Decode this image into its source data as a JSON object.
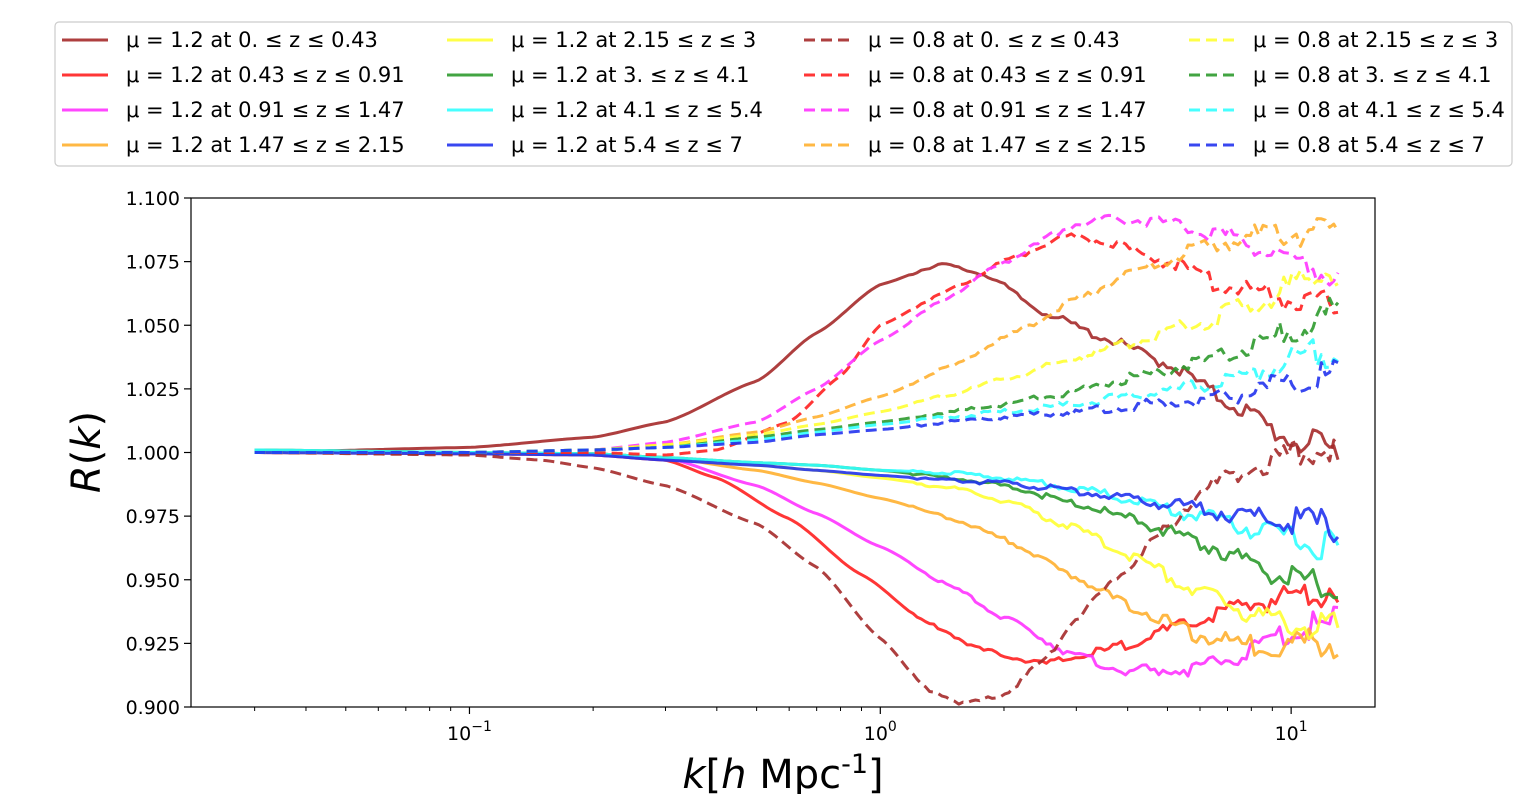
{
  "chart_data": {
    "type": "line",
    "title": "",
    "xlabel": "k[h Mpc^-1]",
    "ylabel": "R(k)",
    "xscale": "log",
    "xlim": [
      0.021,
      16
    ],
    "ylim": [
      0.9,
      1.1
    ],
    "x_ticks": [
      {
        "value": 0.1,
        "label": "10",
        "exp": "−1"
      },
      {
        "value": 1,
        "label": "10",
        "exp": "0"
      },
      {
        "value": 10,
        "label": "10",
        "exp": "1"
      }
    ],
    "y_ticks": [
      {
        "value": 0.9,
        "label": "0.900"
      },
      {
        "value": 0.925,
        "label": "0.925"
      },
      {
        "value": 0.95,
        "label": "0.950"
      },
      {
        "value": 0.975,
        "label": "0.975"
      },
      {
        "value": 1.0,
        "label": "1.000"
      },
      {
        "value": 1.025,
        "label": "1.025"
      },
      {
        "value": 1.05,
        "label": "1.050"
      },
      {
        "value": 1.075,
        "label": "1.075"
      },
      {
        "value": 1.1,
        "label": "1.100"
      }
    ],
    "grid": false,
    "legend_position": "top",
    "series": [
      {
        "name": "μ = 1.2 at 0. ≤ z ≤ 0.43",
        "color": "#a52a2a",
        "dash": "solid",
        "x": [
          0.03,
          0.1,
          0.2,
          0.3,
          0.5,
          0.7,
          1.0,
          1.4,
          1.8,
          2.5,
          3.5,
          5.0,
          7.0,
          10.0,
          13.0
        ],
        "y": [
          1.0,
          1.002,
          1.006,
          1.012,
          1.028,
          1.047,
          1.066,
          1.074,
          1.07,
          1.055,
          1.045,
          1.035,
          1.02,
          1.005,
          1.0
        ]
      },
      {
        "name": "μ = 1.2 at 0.43 ≤ z ≤ 0.91",
        "color": "#ff2020",
        "dash": "solid",
        "x": [
          0.03,
          0.1,
          0.2,
          0.3,
          0.4,
          0.6,
          0.9,
          1.3,
          1.8,
          2.5,
          3.5,
          5.0,
          7.0,
          10.0,
          13.0
        ],
        "y": [
          1.0,
          0.9995,
          0.999,
          0.997,
          0.99,
          0.974,
          0.952,
          0.933,
          0.922,
          0.917,
          0.922,
          0.93,
          0.938,
          0.944,
          0.947
        ]
      },
      {
        "name": "μ = 1.2 at 0.91 ≤ z ≤ 1.47",
        "color": "#ff33ff",
        "dash": "solid",
        "x": [
          0.03,
          0.1,
          0.2,
          0.3,
          0.5,
          0.7,
          1.0,
          1.5,
          2.0,
          3.0,
          4.0,
          6.0,
          8.0,
          10.0,
          13.0
        ],
        "y": [
          1.0,
          0.9998,
          0.9995,
          0.998,
          0.987,
          0.976,
          0.963,
          0.947,
          0.935,
          0.92,
          0.914,
          0.915,
          0.922,
          0.93,
          0.933
        ]
      },
      {
        "name": "μ = 1.2 at 1.47 ≤ z ≤ 2.15",
        "color": "#ffb030",
        "dash": "solid",
        "x": [
          0.03,
          0.1,
          0.2,
          0.3,
          0.5,
          0.7,
          1.0,
          1.5,
          2.0,
          3.0,
          4.0,
          6.0,
          8.0,
          10.0,
          13.0
        ],
        "y": [
          1.0,
          0.9998,
          0.9995,
          0.998,
          0.993,
          0.988,
          0.982,
          0.974,
          0.966,
          0.951,
          0.94,
          0.928,
          0.924,
          0.925,
          0.926
        ]
      },
      {
        "name": "μ = 1.2 at 2.15 ≤ z ≤ 3",
        "color": "#ffff33",
        "dash": "solid",
        "x": [
          0.03,
          0.1,
          0.2,
          0.3,
          0.5,
          0.7,
          1.0,
          1.5,
          2.0,
          3.0,
          4.0,
          6.0,
          8.0,
          10.0,
          13.0
        ],
        "y": [
          1.0,
          0.9998,
          0.9995,
          0.998,
          0.995,
          0.993,
          0.99,
          0.986,
          0.981,
          0.97,
          0.96,
          0.945,
          0.937,
          0.933,
          0.93
        ]
      },
      {
        "name": "μ = 1.2 at 3. ≤ z ≤ 4.1",
        "color": "#2e9a2e",
        "dash": "solid",
        "x": [
          0.03,
          0.1,
          0.2,
          0.3,
          0.5,
          0.7,
          1.0,
          1.5,
          2.0,
          3.0,
          4.0,
          6.0,
          8.0,
          10.0,
          13.0
        ],
        "y": [
          1.001,
          1.0,
          0.9995,
          0.998,
          0.996,
          0.995,
          0.993,
          0.99,
          0.987,
          0.98,
          0.974,
          0.965,
          0.956,
          0.95,
          0.945
        ]
      },
      {
        "name": "μ = 1.2 at 4.1 ≤ z ≤ 5.4",
        "color": "#33ffff",
        "dash": "solid",
        "x": [
          0.03,
          0.1,
          0.2,
          0.3,
          0.5,
          0.7,
          1.0,
          1.5,
          2.0,
          3.0,
          4.0,
          6.0,
          8.0,
          10.0,
          13.0
        ],
        "y": [
          1.001,
          1.0,
          0.9995,
          0.998,
          0.996,
          0.995,
          0.993,
          0.992,
          0.99,
          0.986,
          0.982,
          0.975,
          0.97,
          0.966,
          0.963
        ]
      },
      {
        "name": "μ = 1.2 at 5.4 ≤ z ≤ 7",
        "color": "#2233ee",
        "dash": "solid",
        "x": [
          0.03,
          0.1,
          0.2,
          0.3,
          0.5,
          0.7,
          1.0,
          1.5,
          2.0,
          3.0,
          4.0,
          6.0,
          8.0,
          10.0,
          13.0
        ],
        "y": [
          1.0,
          0.9995,
          0.999,
          0.997,
          0.995,
          0.993,
          0.991,
          0.989,
          0.988,
          0.985,
          0.982,
          0.978,
          0.975,
          0.973,
          0.971
        ]
      },
      {
        "name": "μ = 0.8 at 0. ≤ z ≤ 0.43",
        "color": "#a52a2a",
        "dash": "dashed",
        "x": [
          0.03,
          0.1,
          0.15,
          0.2,
          0.3,
          0.5,
          0.7,
          1.0,
          1.3,
          1.6,
          2.0,
          2.5,
          3.0,
          4.0,
          5.0,
          6.0,
          8.0,
          10.0,
          13.0
        ],
        "y": [
          1.0,
          0.999,
          0.997,
          0.994,
          0.987,
          0.972,
          0.955,
          0.927,
          0.907,
          0.901,
          0.905,
          0.918,
          0.935,
          0.955,
          0.97,
          0.985,
          0.994,
          0.999,
          1.002
        ]
      },
      {
        "name": "μ = 0.8 at 0.43 ≤ z ≤ 0.91",
        "color": "#ff2020",
        "dash": "dashed",
        "x": [
          0.03,
          0.1,
          0.2,
          0.3,
          0.4,
          0.6,
          0.8,
          1.0,
          1.4,
          2.0,
          2.8,
          3.5,
          5.0,
          7.0,
          10.0,
          13.0
        ],
        "y": [
          1.0,
          1.0,
          1.0,
          0.999,
          1.001,
          1.012,
          1.03,
          1.05,
          1.062,
          1.075,
          1.085,
          1.083,
          1.075,
          1.065,
          1.06,
          1.056
        ]
      },
      {
        "name": "μ = 0.8 at 0.91 ≤ z ≤ 1.47",
        "color": "#ff33ff",
        "dash": "dashed",
        "x": [
          0.03,
          0.1,
          0.2,
          0.3,
          0.5,
          0.7,
          1.0,
          1.5,
          2.0,
          3.0,
          3.8,
          5.0,
          7.0,
          10.0,
          13.0
        ],
        "y": [
          1.0,
          1.0,
          1.001,
          1.004,
          1.012,
          1.025,
          1.044,
          1.062,
          1.075,
          1.09,
          1.092,
          1.09,
          1.085,
          1.075,
          1.07
        ]
      },
      {
        "name": "μ = 0.8 at 1.47 ≤ z ≤ 2.15",
        "color": "#ffb030",
        "dash": "dashed",
        "x": [
          0.03,
          0.1,
          0.2,
          0.3,
          0.5,
          0.7,
          1.0,
          1.5,
          2.0,
          3.0,
          4.0,
          6.0,
          8.0,
          10.0,
          13.0
        ],
        "y": [
          1.0,
          1.0,
          1.001,
          1.003,
          1.008,
          1.014,
          1.022,
          1.034,
          1.045,
          1.06,
          1.07,
          1.08,
          1.085,
          1.087,
          1.085
        ]
      },
      {
        "name": "μ = 0.8 at 2.15 ≤ z ≤ 3",
        "color": "#ffff33",
        "dash": "dashed",
        "x": [
          0.03,
          0.1,
          0.2,
          0.3,
          0.5,
          0.7,
          1.0,
          1.5,
          2.0,
          3.0,
          4.0,
          6.0,
          8.0,
          10.0,
          13.0
        ],
        "y": [
          1.0,
          1.0,
          1.001,
          1.003,
          1.007,
          1.011,
          1.016,
          1.023,
          1.029,
          1.037,
          1.043,
          1.051,
          1.058,
          1.065,
          1.072
        ]
      },
      {
        "name": "μ = 0.8 at 3. ≤ z ≤ 4.1",
        "color": "#2e9a2e",
        "dash": "dashed",
        "x": [
          0.03,
          0.1,
          0.2,
          0.3,
          0.5,
          0.7,
          1.0,
          1.5,
          2.0,
          3.0,
          4.0,
          6.0,
          8.0,
          10.0,
          13.0
        ],
        "y": [
          1.0,
          1.0,
          1.001,
          1.002,
          1.006,
          1.009,
          1.012,
          1.016,
          1.019,
          1.024,
          1.029,
          1.035,
          1.041,
          1.048,
          1.055
        ]
      },
      {
        "name": "μ = 0.8 at 4.1 ≤ z ≤ 5.4",
        "color": "#33ffff",
        "dash": "dashed",
        "x": [
          0.03,
          0.1,
          0.2,
          0.3,
          0.5,
          0.7,
          1.0,
          1.5,
          2.0,
          3.0,
          4.0,
          6.0,
          8.0,
          10.0,
          13.0
        ],
        "y": [
          1.0,
          1.0,
          1.001,
          1.002,
          1.005,
          1.008,
          1.011,
          1.014,
          1.016,
          1.019,
          1.022,
          1.026,
          1.031,
          1.036,
          1.041
        ]
      },
      {
        "name": "μ = 0.8 at 5.4 ≤ z ≤ 7",
        "color": "#2233ee",
        "dash": "dashed",
        "x": [
          0.03,
          0.1,
          0.2,
          0.3,
          0.5,
          0.7,
          1.0,
          1.5,
          2.0,
          3.0,
          4.0,
          6.0,
          8.0,
          10.0,
          13.0
        ],
        "y": [
          1.0,
          1.0,
          1.001,
          1.002,
          1.004,
          1.007,
          1.009,
          1.012,
          1.014,
          1.016,
          1.018,
          1.021,
          1.024,
          1.027,
          1.03
        ]
      }
    ]
  }
}
